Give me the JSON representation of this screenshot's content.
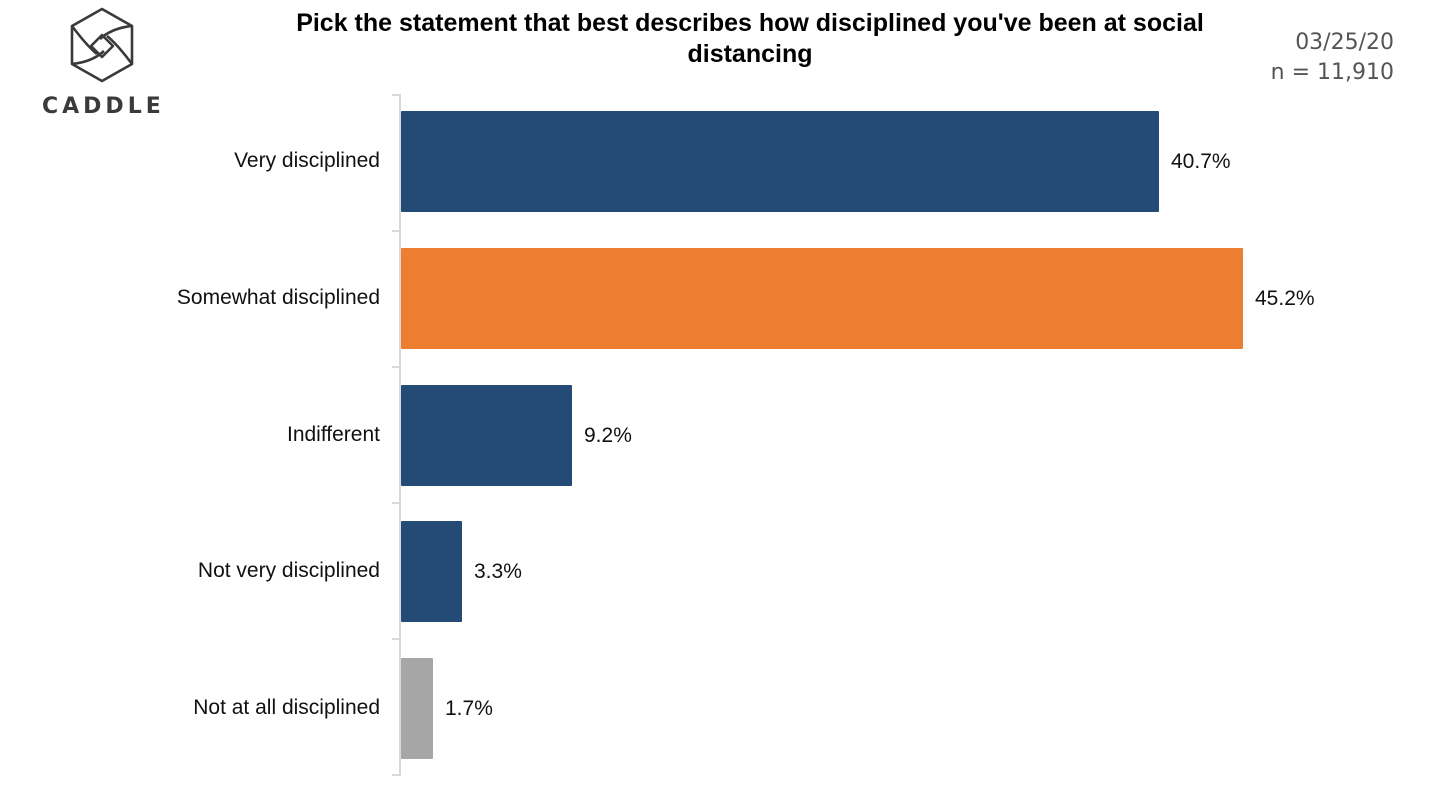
{
  "brand": {
    "name": "CADDLE"
  },
  "header": {
    "title": "Pick the statement that best describes how disciplined you've been at social distancing",
    "date": "03/25/20",
    "sample": "n = 11,910"
  },
  "colors": {
    "primary": "#234b76",
    "highlight": "#ed7d31",
    "neutral": "#a6a6a6"
  },
  "chart_data": {
    "type": "bar",
    "orientation": "horizontal",
    "title": "Pick the statement that best describes how disciplined you've been at social distancing",
    "categories": [
      "Very disciplined",
      "Somewhat disciplined",
      "Indifferent",
      "Not very disciplined",
      "Not at all disciplined"
    ],
    "values": [
      40.7,
      45.2,
      9.2,
      3.3,
      1.7
    ],
    "value_labels": [
      "40.7%",
      "45.2%",
      "9.2%",
      "3.3%",
      "1.7%"
    ],
    "bar_colors": [
      "#234b76",
      "#ed7d31",
      "#234b76",
      "#234b76",
      "#a6a6a6"
    ],
    "xlabel": "",
    "ylabel": "",
    "xlim": [
      0,
      45.2
    ],
    "grid": false,
    "legend": "none",
    "annotations": [
      "03/25/20",
      "n = 11,910"
    ]
  }
}
